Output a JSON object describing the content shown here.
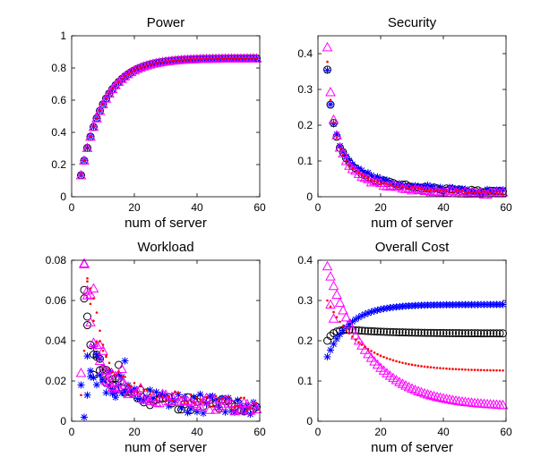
{
  "chart_data": [
    {
      "type": "scatter",
      "title": "Power",
      "xlabel": "num of server",
      "ylabel": "",
      "xlim": [
        0,
        60
      ],
      "ylim": [
        0,
        1
      ],
      "xticks": [
        0,
        20,
        40,
        60
      ],
      "yticks": [
        0,
        0.2,
        0.4,
        0.6,
        0.8,
        1
      ],
      "ytick_labels": [
        "0",
        "0.2",
        "0.4",
        "0.6",
        "0.8",
        "1"
      ],
      "model": {
        "kind": "saturating",
        "a": 0.9,
        "b": 3,
        "c": 2.8,
        "start": 3,
        "end": 59,
        "step": 1
      },
      "series": [
        {
          "name": "circle",
          "marker": "circle",
          "color": "#000000"
        },
        {
          "name": "star",
          "marker": "star",
          "color": "#0000ff"
        },
        {
          "name": "triangle",
          "marker": "triangle",
          "color": "#ff00ff"
        },
        {
          "name": "dot",
          "marker": "dot",
          "color": "#ff0000"
        }
      ]
    },
    {
      "type": "scatter",
      "title": "Security",
      "xlabel": "num of server",
      "ylabel": "",
      "xlim": [
        0,
        60
      ],
      "ylim": [
        0,
        0.45
      ],
      "xticks": [
        0,
        20,
        40,
        60
      ],
      "yticks": [
        0,
        0.1,
        0.2,
        0.3,
        0.4
      ],
      "ytick_labels": [
        "0",
        "0.1",
        "0.2",
        "0.3",
        "0.4"
      ],
      "series": [
        {
          "name": "circle",
          "marker": "circle",
          "color": "#000000",
          "model": {
            "kind": "power",
            "a": 0.355,
            "base": 3,
            "exp": 1.1,
            "noise": 0.004,
            "seed": 1,
            "start": 3,
            "end": 59,
            "step": 1
          }
        },
        {
          "name": "star",
          "marker": "star",
          "color": "#0000ff",
          "model": {
            "kind": "power",
            "a": 0.355,
            "base": 3,
            "exp": 1.05,
            "noise": 0.006,
            "seed": 2,
            "start": 3,
            "end": 59,
            "step": 1
          }
        },
        {
          "name": "triangle",
          "marker": "triangle",
          "color": "#ff00ff",
          "model": {
            "kind": "power",
            "a": 0.42,
            "base": 3,
            "exp": 1.3,
            "noise": 0.004,
            "seed": 3,
            "start": 3,
            "end": 59,
            "step": 1
          }
        },
        {
          "name": "dot",
          "marker": "dot",
          "color": "#ff0000",
          "model": {
            "kind": "power",
            "a": 0.38,
            "base": 3,
            "exp": 1.2,
            "noise": 0.003,
            "seed": 4,
            "start": 3,
            "end": 59,
            "step": 1
          }
        }
      ]
    },
    {
      "type": "scatter",
      "title": "Workload",
      "xlabel": "num of server",
      "ylabel": "",
      "xlim": [
        0,
        60
      ],
      "ylim": [
        0,
        0.08
      ],
      "xticks": [
        0,
        20,
        40,
        60
      ],
      "yticks": [
        0,
        0.02,
        0.04,
        0.06,
        0.08
      ],
      "ytick_labels": [
        "0",
        "0.02",
        "0.04",
        "0.06",
        "0.08"
      ],
      "series": [
        {
          "name": "circle",
          "marker": "circle",
          "color": "#000000",
          "model": {
            "kind": "decay",
            "a": 0.062,
            "base": 4,
            "exp": 1.1,
            "floor": 0.004,
            "noise": 0.004,
            "seed": 11,
            "start": 4,
            "end": 59,
            "step": 1
          },
          "points": [
            [
              4,
              0.061
            ],
            [
              5,
              0.052
            ],
            [
              7,
              0.023
            ],
            [
              8,
              0.032
            ],
            [
              9,
              0.031
            ],
            [
              10,
              0.026
            ],
            [
              11,
              0.019
            ],
            [
              13,
              0.018
            ],
            [
              14,
              0.016
            ],
            [
              15,
              0.028
            ]
          ]
        },
        {
          "name": "star",
          "marker": "star",
          "color": "#0000ff",
          "model": {
            "kind": "decay",
            "a": 0.03,
            "base": 5,
            "exp": 0.9,
            "floor": 0.005,
            "noise": 0.005,
            "seed": 12,
            "start": 5,
            "end": 59,
            "step": 1
          },
          "points": [
            [
              3,
              0.018
            ],
            [
              4,
              0.002
            ],
            [
              5,
              0.013
            ],
            [
              6,
              0.025
            ],
            [
              7,
              0.037
            ],
            [
              8,
              0.033
            ],
            [
              9,
              0.031
            ],
            [
              10,
              0.02
            ],
            [
              12,
              0.025
            ],
            [
              13,
              0.015
            ],
            [
              14,
              0.014
            ],
            [
              15,
              0.023
            ],
            [
              16,
              0.022
            ],
            [
              17,
              0.03
            ]
          ]
        },
        {
          "name": "triangle",
          "marker": "triangle",
          "color": "#ff00ff",
          "model": {
            "kind": "decay",
            "a": 0.078,
            "base": 4,
            "exp": 1.25,
            "floor": 0.005,
            "noise": 0.003,
            "seed": 13,
            "start": 4,
            "end": 59,
            "step": 1
          },
          "points": [
            [
              3,
              0.024
            ],
            [
              4,
              0.078
            ],
            [
              5,
              0.065
            ],
            [
              6,
              0.063
            ],
            [
              7,
              0.066
            ],
            [
              9,
              0.038
            ],
            [
              10,
              0.035
            ],
            [
              11,
              0.02
            ],
            [
              12,
              0.019
            ],
            [
              13,
              0.017
            ],
            [
              14,
              0.016
            ],
            [
              16,
              0.026
            ]
          ]
        },
        {
          "name": "dot",
          "marker": "dot",
          "color": "#ff0000",
          "model": {
            "kind": "decay",
            "a": 0.07,
            "base": 5,
            "exp": 1.2,
            "floor": 0.005,
            "noise": 0.003,
            "seed": 14,
            "start": 5,
            "end": 59,
            "step": 1
          },
          "points": [
            [
              3,
              0.013
            ],
            [
              4,
              0.035
            ],
            [
              5,
              0.071
            ],
            [
              6,
              0.066
            ],
            [
              7,
              0.061
            ],
            [
              8,
              0.054
            ],
            [
              9,
              0.045
            ],
            [
              10,
              0.038
            ],
            [
              11,
              0.032
            ],
            [
              12,
              0.029
            ]
          ]
        }
      ]
    },
    {
      "type": "scatter",
      "title": "Overall Cost",
      "xlabel": "num of server",
      "ylabel": "",
      "xlim": [
        0,
        60
      ],
      "ylim": [
        0,
        0.4
      ],
      "xticks": [
        0,
        20,
        40,
        60
      ],
      "yticks": [
        0,
        0.1,
        0.2,
        0.3,
        0.4
      ],
      "ytick_labels": [
        "0",
        "0.1",
        "0.2",
        "0.3",
        "0.4"
      ],
      "series": [
        {
          "name": "circle",
          "marker": "circle",
          "color": "#000000",
          "model": {
            "kind": "hump",
            "start_y": 0.2,
            "peak": 0.228,
            "peak_x": 9,
            "end_y": 0.218,
            "start": 3,
            "end": 59,
            "step": 1
          }
        },
        {
          "name": "star",
          "marker": "star",
          "color": "#0000ff",
          "model": {
            "kind": "rise",
            "start_y": 0.16,
            "end_y": 0.29,
            "k": 0.14,
            "start": 3,
            "end": 59,
            "step": 1
          }
        },
        {
          "name": "triangle",
          "marker": "triangle",
          "color": "#ff00ff",
          "model": {
            "kind": "fall",
            "start_y": 0.385,
            "end_y": 0.035,
            "k": 0.075,
            "start": 3,
            "end": 59,
            "step": 1
          },
          "points": [
            [
              4,
              0.29
            ],
            [
              5,
              0.255
            ]
          ]
        },
        {
          "name": "dot",
          "marker": "dot",
          "color": "#ff0000",
          "model": {
            "kind": "fall",
            "start_y": 0.3,
            "end_y": 0.125,
            "k": 0.09,
            "start": 3,
            "end": 59,
            "step": 1
          }
        }
      ]
    }
  ]
}
